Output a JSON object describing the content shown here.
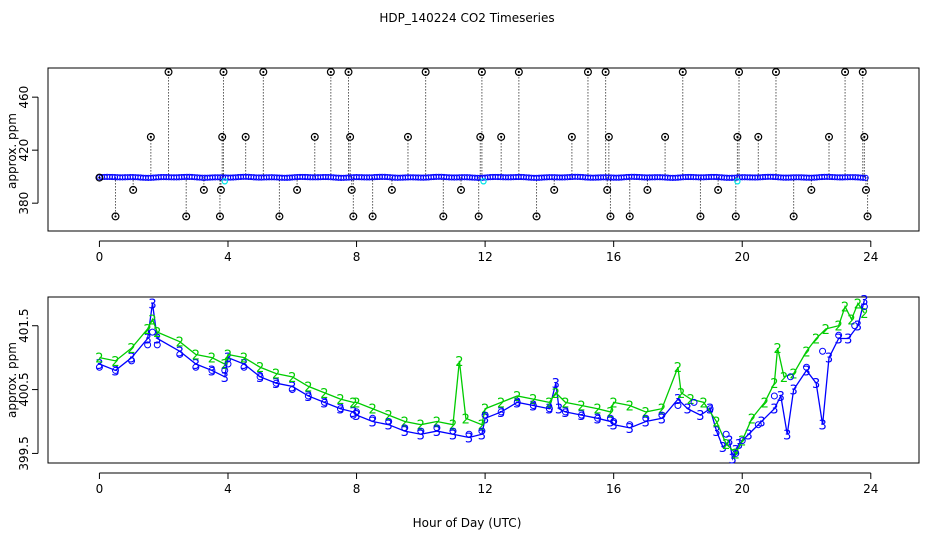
{
  "figure": {
    "title": "HDP_140224  CO2 Timeseries",
    "xlabel": "Hour of Day (UTC)"
  },
  "colors": {
    "black": "#000000",
    "blue": "#0000ff",
    "green": "#00cc00",
    "cyan": "#00e5e5"
  },
  "chart_data": [
    {
      "type": "scatter",
      "panel": "top",
      "ylabel": "approx. ppm",
      "xlim": [
        -1.6,
        25.5
      ],
      "ylim": [
        359,
        482
      ],
      "xticks": [
        0,
        4,
        8,
        12,
        16,
        20,
        24
      ],
      "yticks": [
        380,
        420,
        460
      ],
      "ytick_labels": [
        "380",
        "420",
        "460"
      ],
      "base_level": 399.5,
      "series": [
        {
          "marker": "open-circle",
          "color": "black",
          "x": [
            0.0,
            0.5,
            1.05,
            1.6,
            2.15,
            2.7,
            3.25,
            3.75,
            3.78,
            3.82,
            3.86,
            4.55,
            5.1,
            5.6,
            6.15,
            6.7,
            7.2,
            7.75,
            7.8,
            7.85,
            7.9,
            8.5,
            9.1,
            9.6,
            10.15,
            10.7,
            11.25,
            11.8,
            11.85,
            11.9,
            12.5,
            13.05,
            13.6,
            14.15,
            14.7,
            15.2,
            15.75,
            15.8,
            15.85,
            15.9,
            16.5,
            17.05,
            17.6,
            18.15,
            18.7,
            19.25,
            19.8,
            19.85,
            19.9,
            20.5,
            21.05,
            21.6,
            22.15,
            22.7,
            23.2,
            23.75,
            23.8,
            23.85,
            23.9
          ],
          "y": [
            399.3,
            370,
            390,
            430,
            486,
            370,
            390,
            370,
            390,
            430,
            486,
            430,
            486,
            370,
            390,
            430,
            486,
            486,
            430,
            390,
            370,
            370,
            390,
            430,
            486,
            370,
            390,
            370,
            430,
            486,
            430,
            486,
            370,
            390,
            430,
            486,
            486,
            390,
            430,
            370,
            370,
            390,
            430,
            486,
            370,
            390,
            370,
            430,
            486,
            430,
            486,
            370,
            390,
            430,
            486,
            486,
            430,
            390,
            370
          ]
        }
      ]
    },
    {
      "type": "line",
      "panel": "bottom",
      "ylabel": "approx. ppm",
      "xlim": [
        -1.6,
        25.5
      ],
      "ylim": [
        399.35,
        401.95
      ],
      "xticks": [
        0,
        4,
        8,
        12,
        16,
        20,
        24
      ],
      "yticks": [
        399.5,
        400.5,
        401.5
      ],
      "ytick_labels": [
        "399.5",
        "400.5",
        "401.5"
      ],
      "series": [
        {
          "marker": "3",
          "color": "blue",
          "x": [
            0.0,
            0.5,
            1.0,
            1.5,
            1.65,
            1.8,
            2.5,
            3.0,
            3.5,
            3.9,
            4.0,
            4.5,
            5.0,
            5.5,
            6.0,
            6.5,
            7.0,
            7.5,
            7.9,
            8.0,
            8.5,
            9.0,
            9.5,
            10.0,
            10.5,
            11.0,
            11.5,
            11.9,
            12.0,
            12.5,
            13.0,
            13.5,
            14.0,
            14.2,
            14.3,
            14.5,
            15.0,
            15.5,
            15.9,
            16.0,
            16.5,
            17.0,
            17.5,
            18.0,
            18.3,
            18.7,
            19.0,
            19.2,
            19.4,
            19.6,
            19.7,
            19.8,
            19.9,
            20.2,
            20.6,
            21.0,
            21.2,
            21.4,
            21.6,
            22.0,
            22.3,
            22.5,
            22.7,
            23.0,
            23.3,
            23.6,
            23.8
          ],
          "y": [
            400.9,
            400.8,
            401.0,
            401.3,
            401.85,
            401.3,
            401.1,
            400.9,
            400.8,
            400.7,
            401.0,
            400.9,
            400.7,
            400.6,
            400.55,
            400.4,
            400.3,
            400.2,
            400.15,
            400.1,
            400.0,
            399.95,
            399.85,
            399.8,
            399.85,
            399.8,
            399.75,
            399.8,
            400.05,
            400.15,
            400.3,
            400.25,
            400.2,
            400.6,
            400.2,
            400.15,
            400.1,
            400.05,
            400.0,
            399.95,
            399.9,
            400.0,
            400.05,
            400.35,
            400.2,
            400.1,
            400.2,
            399.85,
            399.6,
            399.7,
            399.42,
            399.55,
            399.65,
            399.8,
            400.0,
            400.2,
            400.4,
            399.8,
            400.5,
            400.8,
            400.6,
            399.95,
            401.0,
            401.3,
            401.3,
            401.5,
            401.9
          ]
        },
        {
          "marker": "2",
          "color": "green",
          "x": [
            0.0,
            0.5,
            1.0,
            1.5,
            1.65,
            1.8,
            2.5,
            3.0,
            3.5,
            3.9,
            4.0,
            4.5,
            5.0,
            5.5,
            6.0,
            6.5,
            7.0,
            7.5,
            7.9,
            8.0,
            8.5,
            9.0,
            9.5,
            10.0,
            10.5,
            11.0,
            11.2,
            11.4,
            11.9,
            12.0,
            12.5,
            13.0,
            13.5,
            14.0,
            14.2,
            14.5,
            15.0,
            15.5,
            15.9,
            16.0,
            16.5,
            17.0,
            17.5,
            18.0,
            18.1,
            18.4,
            18.8,
            19.2,
            19.5,
            19.8,
            20.0,
            20.3,
            20.7,
            21.0,
            21.1,
            21.3,
            21.6,
            22.0,
            22.3,
            22.6,
            23.0,
            23.2,
            23.4,
            23.6,
            23.8
          ],
          "y": [
            401.0,
            400.95,
            401.15,
            401.45,
            401.6,
            401.4,
            401.25,
            401.05,
            401.0,
            400.9,
            401.05,
            401.0,
            400.85,
            400.75,
            400.7,
            400.55,
            400.45,
            400.35,
            400.3,
            400.3,
            400.2,
            400.1,
            400.0,
            399.95,
            400.0,
            399.95,
            400.95,
            400.05,
            399.95,
            400.2,
            400.3,
            400.4,
            400.35,
            400.3,
            400.45,
            400.3,
            400.25,
            400.2,
            400.15,
            400.3,
            400.25,
            400.15,
            400.2,
            400.85,
            400.45,
            400.35,
            400.3,
            400.0,
            399.65,
            399.5,
            399.7,
            400.05,
            400.3,
            400.6,
            401.15,
            400.7,
            400.75,
            401.1,
            401.3,
            401.45,
            401.5,
            401.8,
            401.6,
            401.85,
            401.7
          ]
        },
        {
          "marker": "o",
          "color": "blue",
          "x": [
            0.0,
            0.5,
            1.0,
            1.5,
            1.65,
            1.8,
            2.5,
            3.0,
            3.5,
            3.9,
            4.0,
            4.5,
            5.0,
            5.5,
            6.0,
            6.5,
            7.0,
            7.5,
            7.9,
            8.0,
            8.5,
            9.0,
            9.5,
            10.0,
            10.5,
            11.0,
            11.5,
            11.9,
            12.0,
            12.5,
            13.0,
            13.5,
            14.0,
            14.5,
            15.0,
            15.5,
            15.9,
            16.0,
            16.5,
            17.0,
            17.5,
            18.0,
            18.5,
            19.0,
            19.5,
            19.8,
            20.0,
            20.5,
            21.0,
            21.5,
            22.0,
            22.5,
            23.0,
            23.5,
            23.8
          ],
          "y": [
            400.85,
            400.8,
            400.95,
            401.2,
            401.4,
            401.2,
            401.05,
            400.85,
            400.8,
            400.8,
            400.9,
            400.85,
            400.7,
            400.6,
            400.5,
            400.4,
            400.3,
            400.2,
            400.1,
            400.15,
            400.05,
            400.0,
            399.9,
            399.85,
            399.9,
            399.85,
            399.8,
            399.85,
            400.1,
            400.15,
            400.3,
            400.25,
            400.2,
            400.15,
            400.1,
            400.05,
            400.05,
            400.0,
            399.95,
            400.05,
            400.1,
            400.25,
            400.3,
            400.2,
            399.8,
            399.5,
            399.7,
            399.95,
            400.4,
            400.7,
            400.85,
            401.1,
            401.35,
            401.5,
            401.8
          ]
        }
      ]
    }
  ]
}
